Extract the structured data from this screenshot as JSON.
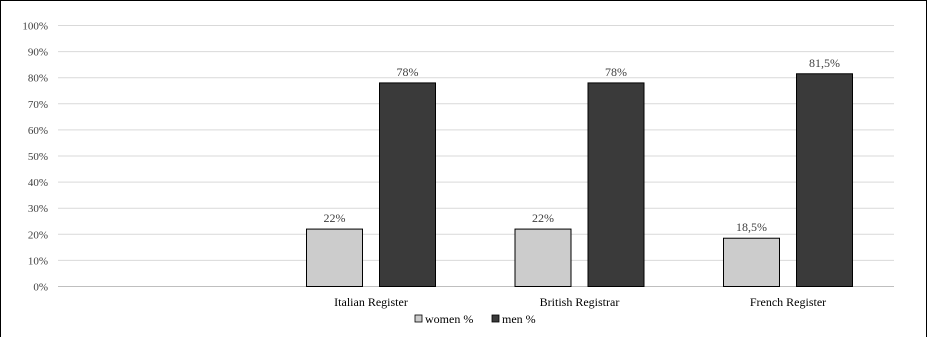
{
  "chart_data": {
    "type": "bar",
    "categories": [
      "Italian Register",
      "British Registrar",
      "French Register"
    ],
    "series": [
      {
        "name": "women %",
        "values": [
          22,
          22,
          18.5
        ],
        "labels": [
          "22%",
          "22%",
          "18,5%"
        ],
        "color": "#cccccc"
      },
      {
        "name": "men %",
        "values": [
          78,
          78,
          81.5
        ],
        "labels": [
          "78%",
          "78%",
          "81,5%"
        ],
        "color": "#3a3a3a"
      }
    ],
    "yticks": [
      "0%",
      "10%",
      "20%",
      "30%",
      "40%",
      "50%",
      "60%",
      "70%",
      "80%",
      "90%",
      "100%"
    ],
    "ylim": [
      0,
      100
    ],
    "grid": true,
    "legend_position": "bottom"
  }
}
